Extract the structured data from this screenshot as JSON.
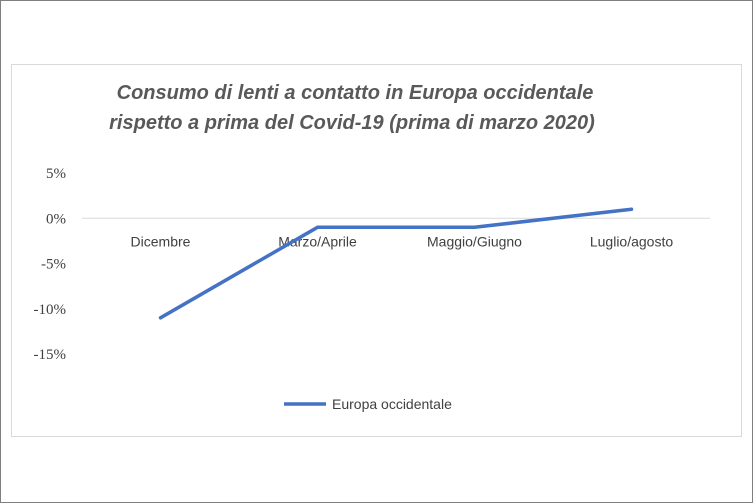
{
  "chart_data": {
    "type": "line",
    "title": "Consumo di lenti a contatto in Europa occidentale rispetto a prima del Covid-19 (prima di marzo 2020)",
    "title_lines": [
      "Consumo di lenti a contatto in Europa occidentale",
      "rispetto a prima del Covid-19 (prima di marzo 2020)"
    ],
    "categories": [
      "Dicembre",
      "Marzo/Aprile",
      "Maggio/Giugno",
      "Luglio/agosto"
    ],
    "series": [
      {
        "name": "Europa occidentale",
        "values": [
          -11,
          -1,
          -1,
          1
        ],
        "color": "#4472c4"
      }
    ],
    "y_ticks": [
      5,
      0,
      -5,
      -10,
      -15
    ],
    "y_tick_labels": [
      "5%",
      "0%",
      "-5%",
      "-10%",
      "-15%"
    ],
    "ylim": [
      -15,
      5
    ],
    "xlabel": "",
    "ylabel": "",
    "grid": false,
    "zero_line": true,
    "legend_position": "bottom"
  }
}
